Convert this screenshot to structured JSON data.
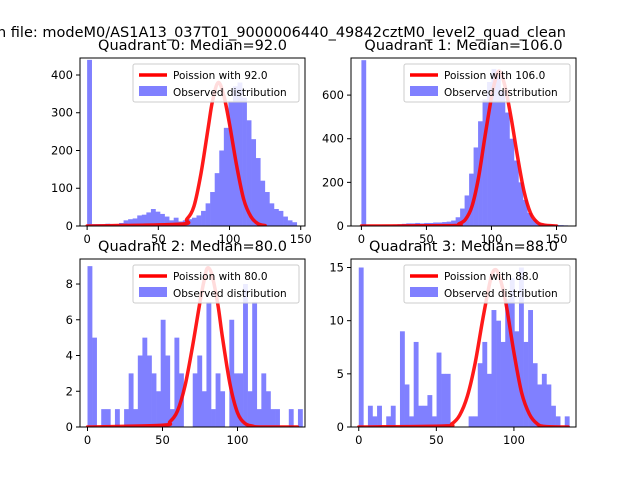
{
  "figure": {
    "suptitle": "n file: modeM0/AS1A13_037T01_9000006440_49842cztM0_level2_quad_clean"
  },
  "colors": {
    "histogram": "#8080ff",
    "poisson_line": "#ff0000",
    "axes": "#000000",
    "background": "#ffffff"
  },
  "chart_data": [
    {
      "type": "bar",
      "title": "Quadrant 0: Median=92.0",
      "median": 92.0,
      "xlim": [
        -5,
        153
      ],
      "ylim": [
        0,
        445
      ],
      "xticks": [
        0,
        50,
        100,
        150
      ],
      "yticks": [
        0,
        100,
        200,
        300,
        400
      ],
      "bin_start": 0,
      "bin_width": 3.2,
      "values": [
        440,
        5,
        5,
        5,
        6,
        5,
        5,
        8,
        15,
        18,
        20,
        28,
        30,
        36,
        45,
        38,
        32,
        25,
        15,
        22,
        12,
        15,
        18,
        22,
        28,
        40,
        60,
        90,
        140,
        200,
        260,
        330,
        370,
        380,
        340,
        280,
        230,
        180,
        120,
        90,
        60,
        45,
        40,
        25,
        15,
        10
      ],
      "legend": [
        "Poission with 92.0",
        "Observed distribution"
      ],
      "legend_loc": "upper right",
      "series": [
        {
          "name": "Poission with 92.0",
          "type": "line",
          "lambda": 92.0,
          "x": [
            0,
            65,
            70,
            75,
            80,
            85,
            88,
            92,
            96,
            100,
            105,
            110,
            115,
            120,
            125
          ],
          "y": [
            0,
            5,
            18,
            52,
            140,
            260,
            330,
            380,
            345,
            270,
            160,
            70,
            25,
            6,
            1
          ]
        }
      ]
    },
    {
      "type": "bar",
      "title": "Quadrant 1: Median=106.0",
      "median": 106.0,
      "xlim": [
        -8,
        165
      ],
      "ylim": [
        0,
        770
      ],
      "xticks": [
        0,
        50,
        100,
        150
      ],
      "yticks": [
        0,
        200,
        400,
        600
      ],
      "bin_start": 0,
      "bin_width": 3.45,
      "values": [
        760,
        5,
        4,
        4,
        5,
        5,
        4,
        6,
        8,
        10,
        12,
        12,
        14,
        12,
        14,
        14,
        16,
        16,
        18,
        20,
        25,
        40,
        80,
        140,
        240,
        360,
        480,
        580,
        660,
        720,
        700,
        620,
        520,
        400,
        300,
        200,
        120,
        60,
        30,
        15,
        10,
        8,
        6,
        5,
        4,
        3
      ],
      "legend": [
        "Poission with 106.0",
        "Observed distribution"
      ],
      "legend_loc": "upper right",
      "series": [
        {
          "name": "Poission with 106.0",
          "type": "line",
          "lambda": 106.0,
          "x": [
            0,
            70,
            75,
            80,
            85,
            90,
            95,
            100,
            103,
            106,
            110,
            115,
            120,
            125,
            130,
            135,
            140,
            150
          ],
          "y": [
            0,
            2,
            10,
            30,
            90,
            220,
            410,
            590,
            670,
            710,
            650,
            500,
            320,
            160,
            60,
            18,
            5,
            0
          ]
        }
      ]
    },
    {
      "type": "bar",
      "title": "Quadrant 2: Median=80.0",
      "median": 80.0,
      "xlim": [
        -5,
        145
      ],
      "ylim": [
        0,
        9.4
      ],
      "xticks": [
        0,
        50,
        100
      ],
      "yticks": [
        0,
        2,
        4,
        6,
        8
      ],
      "bin_start": 0,
      "bin_width": 3.05,
      "values": [
        9,
        5,
        0,
        1,
        1,
        0,
        1,
        0,
        1,
        3,
        1,
        4,
        5,
        4,
        3,
        2,
        6,
        4,
        1,
        5,
        3,
        0,
        0,
        3,
        4,
        2,
        7,
        1,
        3,
        2,
        0,
        6,
        3,
        3,
        8,
        2,
        7,
        1,
        3,
        2,
        1,
        1,
        0,
        0,
        1,
        0,
        1
      ],
      "legend": [
        "Poission with 80.0",
        "Observed distribution"
      ],
      "legend_loc": "upper right",
      "series": [
        {
          "name": "Poission with 80.0",
          "type": "line",
          "lambda": 80.0,
          "x": [
            0,
            50,
            55,
            60,
            65,
            70,
            75,
            78,
            80,
            83,
            87,
            90,
            95,
            100,
            105,
            110,
            115,
            140
          ],
          "y": [
            0,
            0.1,
            0.3,
            0.9,
            2.3,
            4.5,
            7.0,
            8.3,
            8.9,
            8.5,
            6.8,
            5.0,
            2.4,
            0.8,
            0.2,
            0.05,
            0,
            0
          ]
        }
      ]
    },
    {
      "type": "bar",
      "title": "Quadrant 3: Median=88.0",
      "median": 88.0,
      "xlim": [
        -5,
        140
      ],
      "ylim": [
        0,
        15.8
      ],
      "xticks": [
        0,
        50,
        100
      ],
      "yticks": [
        0,
        5,
        10,
        15
      ],
      "bin_start": 0,
      "bin_width": 2.95,
      "values": [
        15,
        0,
        2,
        1,
        2,
        0,
        1,
        2,
        0,
        9,
        4,
        1,
        8,
        2,
        2,
        3,
        1,
        7,
        5,
        5,
        0,
        0,
        0,
        0,
        1,
        1,
        6,
        8,
        5,
        11,
        10,
        8,
        12,
        14,
        9,
        15,
        8,
        11,
        6,
        4,
        5,
        4,
        2,
        1,
        0,
        1,
        0
      ],
      "legend": [
        "Poission with 88.0",
        "Observed distribution"
      ],
      "legend_loc": "upper right",
      "series": [
        {
          "name": "Poission with 88.0",
          "type": "line",
          "lambda": 88.0,
          "x": [
            0,
            55,
            60,
            65,
            70,
            75,
            80,
            85,
            88,
            91,
            95,
            100,
            105,
            110,
            115,
            120,
            135
          ],
          "y": [
            0,
            0.1,
            0.3,
            1.1,
            2.9,
            6.0,
            10.2,
            13.9,
            14.8,
            14.0,
            11.5,
            7.0,
            3.2,
            1.2,
            0.3,
            0.05,
            0
          ]
        }
      ]
    }
  ]
}
